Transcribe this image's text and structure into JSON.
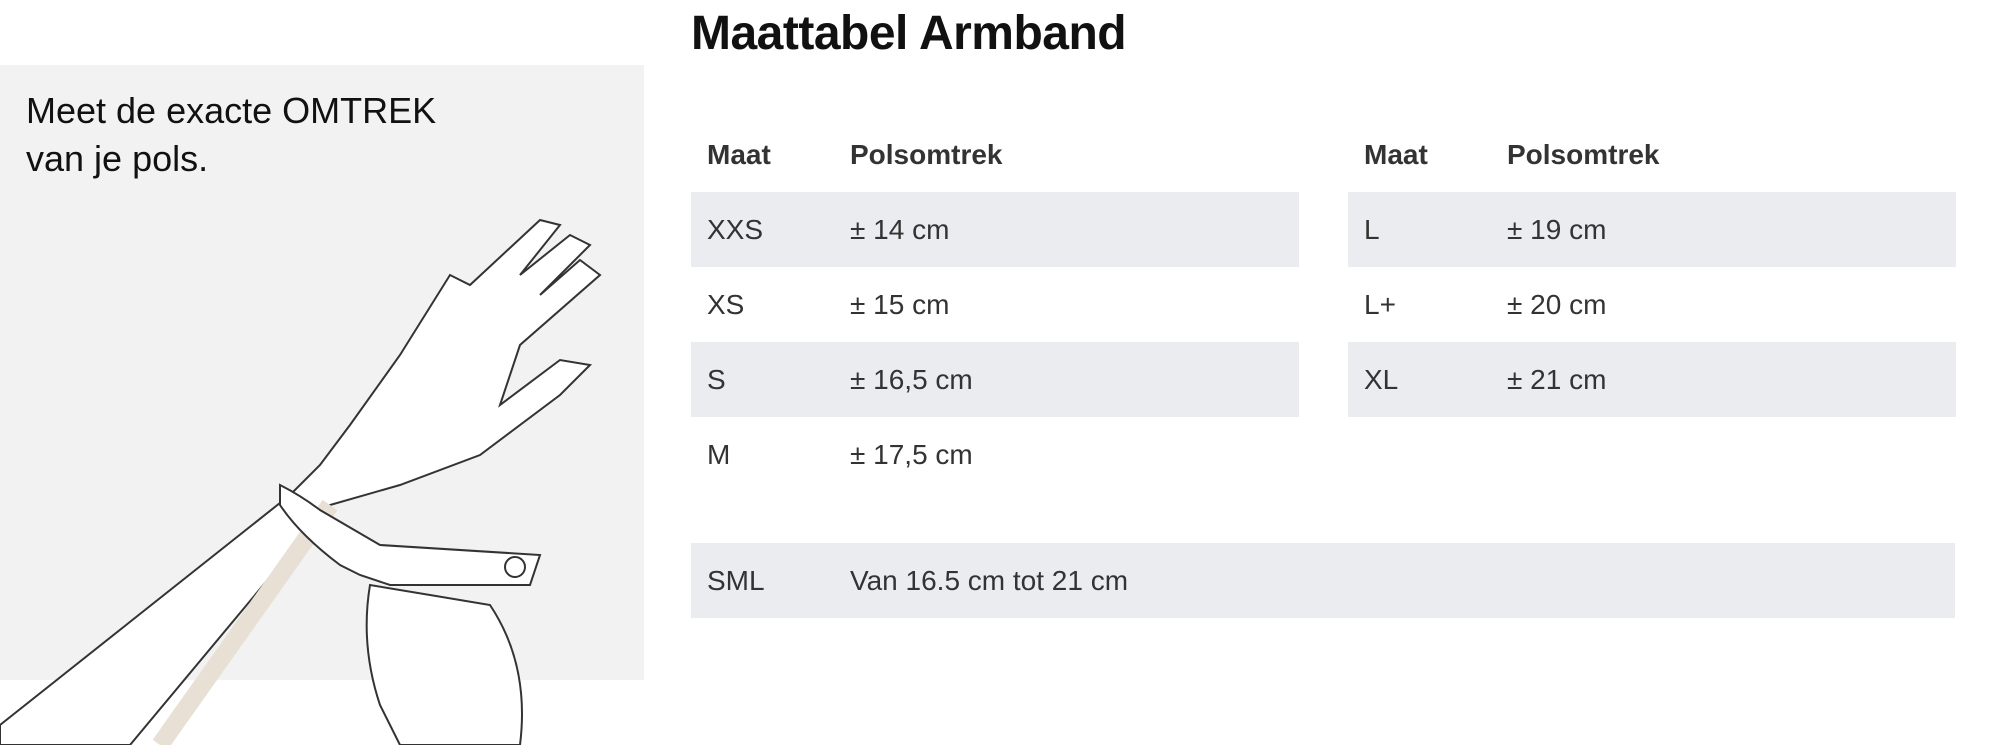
{
  "title": "Maattabel Armband",
  "instruction": {
    "line1": "Meet de exacte OMTREK",
    "line2": "van je pols."
  },
  "headers": {
    "size": "Maat",
    "circumference": "Polsomtrek"
  },
  "left_table": [
    {
      "size": "XXS",
      "value": "± 14 cm"
    },
    {
      "size": "XS",
      "value": "± 15 cm"
    },
    {
      "size": "S",
      "value": "± 16,5 cm"
    },
    {
      "size": "M",
      "value": "± 17,5 cm"
    }
  ],
  "right_table": [
    {
      "size": "L",
      "value": "± 19 cm"
    },
    {
      "size": "L+",
      "value": "± 20 cm"
    },
    {
      "size": "XL",
      "value": "± 21 cm"
    }
  ],
  "sml": {
    "size": "SML",
    "value": "Van 16.5 cm tot 21 cm"
  },
  "colors": {
    "row_alt": "#ebecf0",
    "panel": "#f2f2f2"
  }
}
